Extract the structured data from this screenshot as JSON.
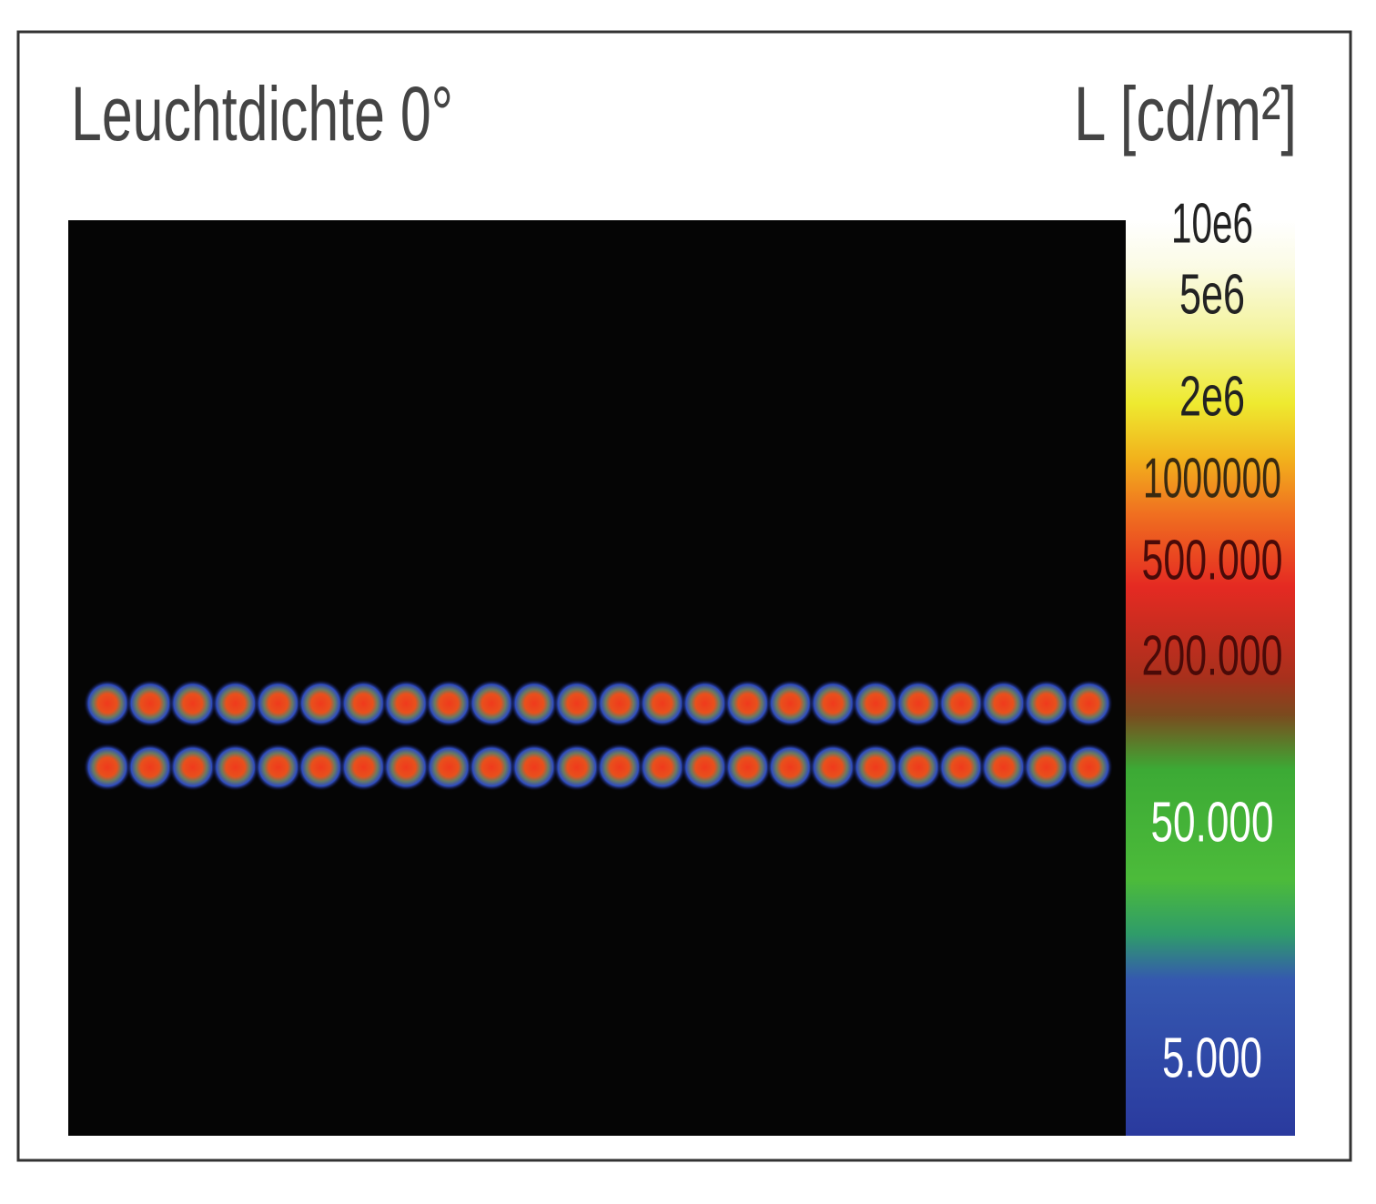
{
  "title": "Leuchtdichte 0°",
  "unit": "L [cd/m²]",
  "scale": {
    "labels": [
      "10e6",
      "5e6",
      "2e6",
      "1000000",
      "500.000",
      "200.000",
      "50.000",
      "5.000"
    ]
  }
}
